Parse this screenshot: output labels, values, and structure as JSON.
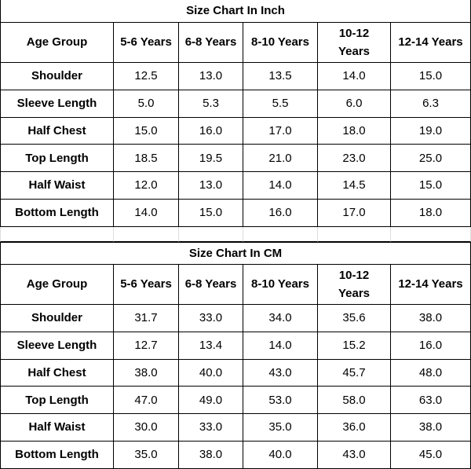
{
  "tables": [
    {
      "title": "Size Chart In Inch",
      "header": [
        "Age Group",
        "5-6 Years",
        "6-8 Years",
        "8-10 Years",
        "10-12 Years",
        "12-14 Years"
      ],
      "rows": [
        [
          "Shoulder",
          "12.5",
          "13.0",
          "13.5",
          "14.0",
          "15.0"
        ],
        [
          "Sleeve Length",
          "5.0",
          "5.3",
          "5.5",
          "6.0",
          "6.3"
        ],
        [
          "Half Chest",
          "15.0",
          "16.0",
          "17.0",
          "18.0",
          "19.0"
        ],
        [
          "Top Length",
          "18.5",
          "19.5",
          "21.0",
          "23.0",
          "25.0"
        ],
        [
          "Half Waist",
          "12.0",
          "13.0",
          "14.0",
          "14.5",
          "15.0"
        ],
        [
          "Bottom Length",
          "14.0",
          "15.0",
          "16.0",
          "17.0",
          "18.0"
        ]
      ]
    },
    {
      "title": "Size Chart In CM",
      "header": [
        "Age Group",
        "5-6 Years",
        "6-8 Years",
        "8-10 Years",
        "10-12 Years",
        "12-14 Years"
      ],
      "rows": [
        [
          "Shoulder",
          "31.7",
          "33.0",
          "34.0",
          "35.6",
          "38.0"
        ],
        [
          "Sleeve Length",
          "12.7",
          "13.4",
          "14.0",
          "15.2",
          "16.0"
        ],
        [
          "Half Chest",
          "38.0",
          "40.0",
          "43.0",
          "45.7",
          "48.0"
        ],
        [
          "Top Length",
          "47.0",
          "49.0",
          "53.0",
          "58.0",
          "63.0"
        ],
        [
          "Half Waist",
          "30.0",
          "33.0",
          "35.0",
          "36.0",
          "38.0"
        ],
        [
          "Bottom Length",
          "35.0",
          "38.0",
          "40.0",
          "43.0",
          "45.0"
        ]
      ]
    }
  ]
}
